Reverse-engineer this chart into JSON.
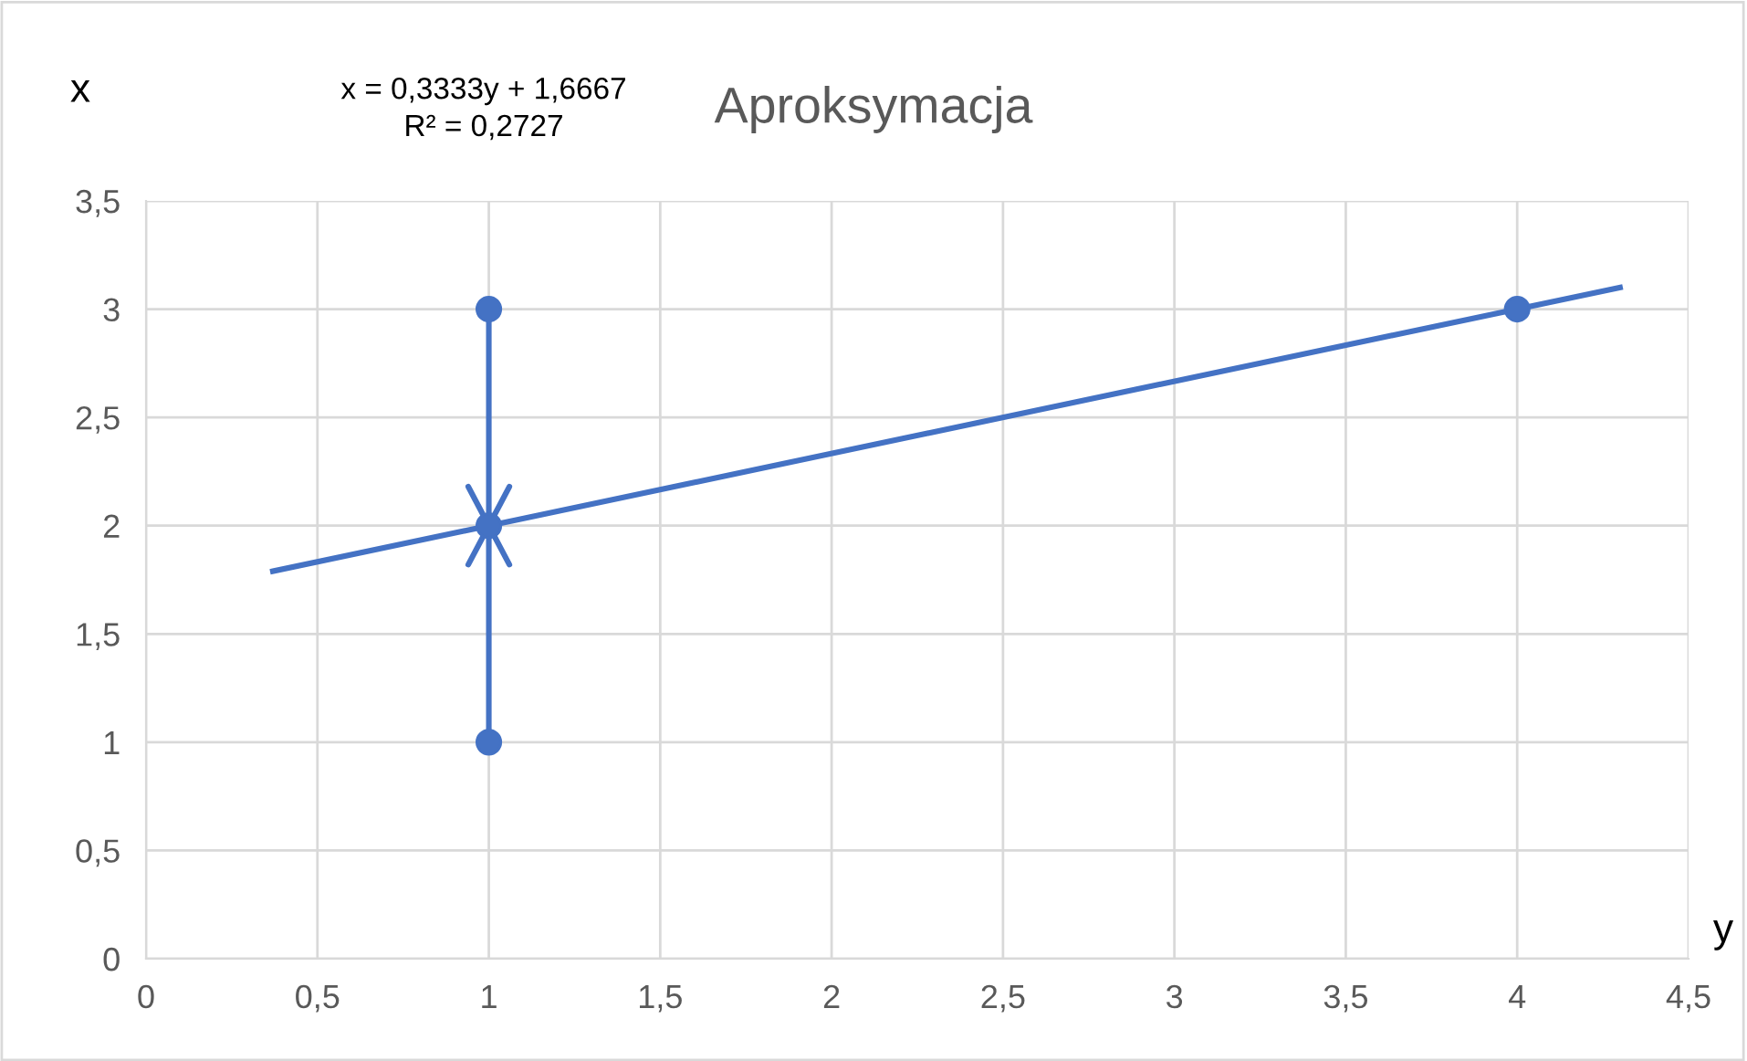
{
  "chart_data": {
    "type": "scatter",
    "title": "Aproksymacja",
    "xlabel": "y",
    "ylabel": "x",
    "annotations": [
      "x = 0,3333y + 1,6667\nR² = 0,2727"
    ],
    "series": [
      {
        "color": "#4472c4",
        "x": [
          1,
          1,
          1,
          4
        ],
        "values": [
          3,
          2,
          1,
          3
        ],
        "marker": "circle"
      },
      {
        "type": "line",
        "color": "#4472c4",
        "x": [
          1,
          1
        ],
        "values": [
          1,
          2
        ],
        "marker": "none"
      },
      {
        "type": "line",
        "color": "#4472c4",
        "x": [
          1,
          1
        ],
        "values": [
          3,
          2
        ],
        "marker": "none"
      },
      {
        "type": "line",
        "color": "#4472c4",
        "x": [
          0.37,
          4.3
        ],
        "values": [
          1.79,
          3.1
        ]
      }
    ],
    "xlim": [
      0,
      4.5
    ],
    "ylim": [
      0,
      3.5
    ],
    "xticks": [
      0,
      {
        "value": 0.5,
        "label": "0,5"
      },
      1,
      {
        "value": 1.5,
        "label": "1,5"
      },
      2,
      {
        "value": 2.5,
        "label": "2,5"
      },
      3,
      {
        "value": 3.5,
        "label": "3,5"
      },
      4,
      {
        "value": 4.5,
        "label": "4,5"
      }
    ],
    "yticks": [
      0,
      {
        "value": 0.5,
        "label": "0,5"
      },
      1,
      {
        "value": 1.5,
        "label": "1,5"
      },
      2,
      {
        "value": 2.5,
        "label": "2,5"
      },
      3,
      {
        "value": 3.5,
        "label": "3,5"
      }
    ],
    "grid": true
  }
}
